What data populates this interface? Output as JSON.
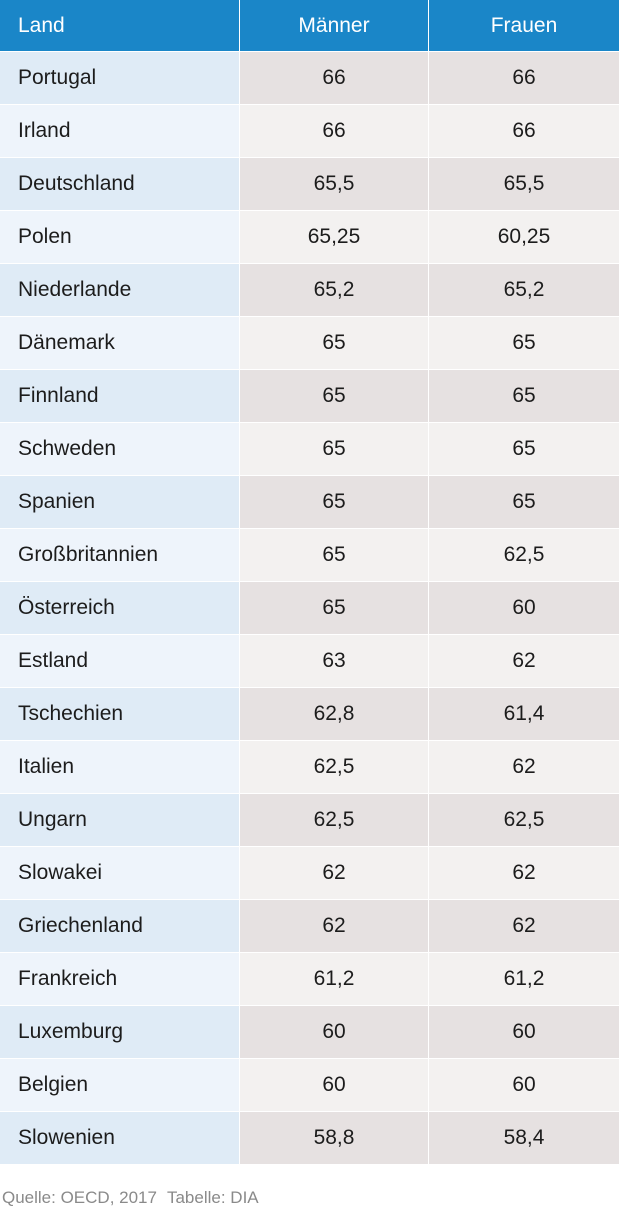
{
  "chart_data": {
    "type": "table",
    "columns": [
      "Land",
      "Männer",
      "Frauen"
    ],
    "rows": [
      [
        "Portugal",
        "66",
        "66"
      ],
      [
        "Irland",
        "66",
        "66"
      ],
      [
        "Deutschland",
        "65,5",
        "65,5"
      ],
      [
        "Polen",
        "65,25",
        "60,25"
      ],
      [
        "Niederlande",
        "65,2",
        "65,2"
      ],
      [
        "Dänemark",
        "65",
        "65"
      ],
      [
        "Finnland",
        "65",
        "65"
      ],
      [
        "Schweden",
        "65",
        "65"
      ],
      [
        "Spanien",
        "65",
        "65"
      ],
      [
        "Großbritannien",
        "65",
        "62,5"
      ],
      [
        "Österreich",
        "65",
        "60"
      ],
      [
        "Estland",
        "63",
        "62"
      ],
      [
        "Tschechien",
        "62,8",
        "61,4"
      ],
      [
        "Italien",
        "62,5",
        "62"
      ],
      [
        "Ungarn",
        "62,5",
        "62,5"
      ],
      [
        "Slowakei",
        "62",
        "62"
      ],
      [
        "Griechenland",
        "62",
        "62"
      ],
      [
        "Frankreich",
        "61,2",
        "61,2"
      ],
      [
        "Luxemburg",
        "60",
        "60"
      ],
      [
        "Belgien",
        "60",
        "60"
      ],
      [
        "Slowenien",
        "58,8",
        "58,4"
      ]
    ]
  },
  "footer": {
    "source": "Quelle: OECD, 2017",
    "table_credit": "Tabelle: DIA"
  },
  "colors": {
    "header_bg": "#1a86c8",
    "header_text": "#ffffff",
    "land_odd": "#dfebf6",
    "land_even": "#eef4fb",
    "value_odd": "#e6e1e1",
    "value_even": "#f3f1f0"
  }
}
